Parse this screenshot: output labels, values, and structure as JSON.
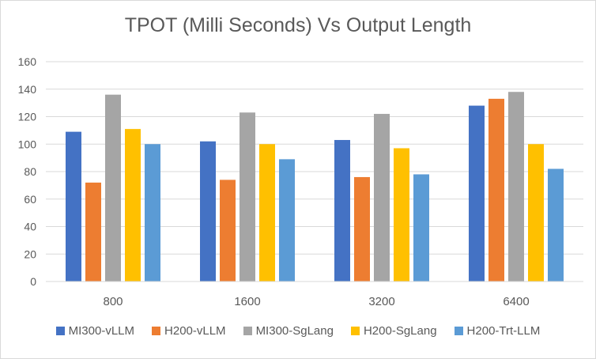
{
  "chart_data": {
    "type": "bar",
    "title": "TPOT (Milli Seconds) Vs Output Length",
    "xlabel": "",
    "ylabel": "",
    "categories": [
      "800",
      "1600",
      "3200",
      "6400"
    ],
    "ylim": [
      0,
      160
    ],
    "yticks": [
      "0",
      "20",
      "40",
      "60",
      "80",
      "100",
      "120",
      "140",
      "160"
    ],
    "grid": true,
    "legend_position": "bottom",
    "series": [
      {
        "name": "MI300-vLLM",
        "color": "#4472C4",
        "values": [
          109,
          102,
          103,
          128
        ]
      },
      {
        "name": "H200-vLLM",
        "color": "#ED7D31",
        "values": [
          72,
          74,
          76,
          133
        ]
      },
      {
        "name": "MI300-SgLang",
        "color": "#A5A5A5",
        "values": [
          136,
          123,
          122,
          138
        ]
      },
      {
        "name": "H200-SgLang",
        "color": "#FFC000",
        "values": [
          111,
          100,
          97,
          100
        ]
      },
      {
        "name": "H200-Trt-LLM",
        "color": "#5B9BD5",
        "values": [
          100,
          89,
          78,
          82
        ]
      }
    ]
  }
}
